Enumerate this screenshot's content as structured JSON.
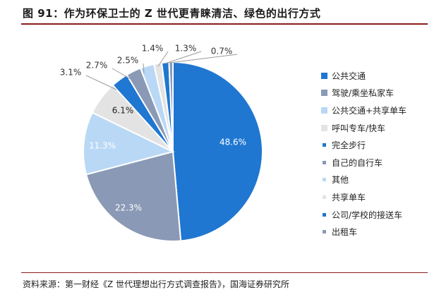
{
  "figure": {
    "title": "图 91：作为环保卫士的 Z 世代更青睐清洁、绿色的出行方式",
    "source": "资料来源：第一财经《Z 世代理想出行方式调查报告》，国海证券研究所"
  },
  "chart_data": {
    "type": "pie",
    "labels": [
      "公共交通",
      "驾驶/乘坐私家车",
      "公共交通+共享单车",
      "呼叫专车/快车",
      "完全步行",
      "自己的自行车",
      "其他",
      "共享单车",
      "公司/学校的接送车",
      "出租车"
    ],
    "values": [
      48.6,
      22.3,
      11.3,
      6.1,
      3.1,
      2.7,
      2.5,
      1.4,
      1.3,
      0.7
    ],
    "value_labels": [
      "48.6%",
      "22.3%",
      "11.3%",
      "6.1%",
      "3.1%",
      "2.7%",
      "2.5%",
      "1.4%",
      "1.3%",
      "0.7%"
    ],
    "colors": [
      "#1f77d1",
      "#8a99b5",
      "#b9d8f5",
      "#e3e3e3",
      "#1f77d1",
      "#8a99b5",
      "#b9d8f5",
      "#e3e3e3",
      "#1f77d1",
      "#8a99b5"
    ],
    "legend_position": "right"
  }
}
